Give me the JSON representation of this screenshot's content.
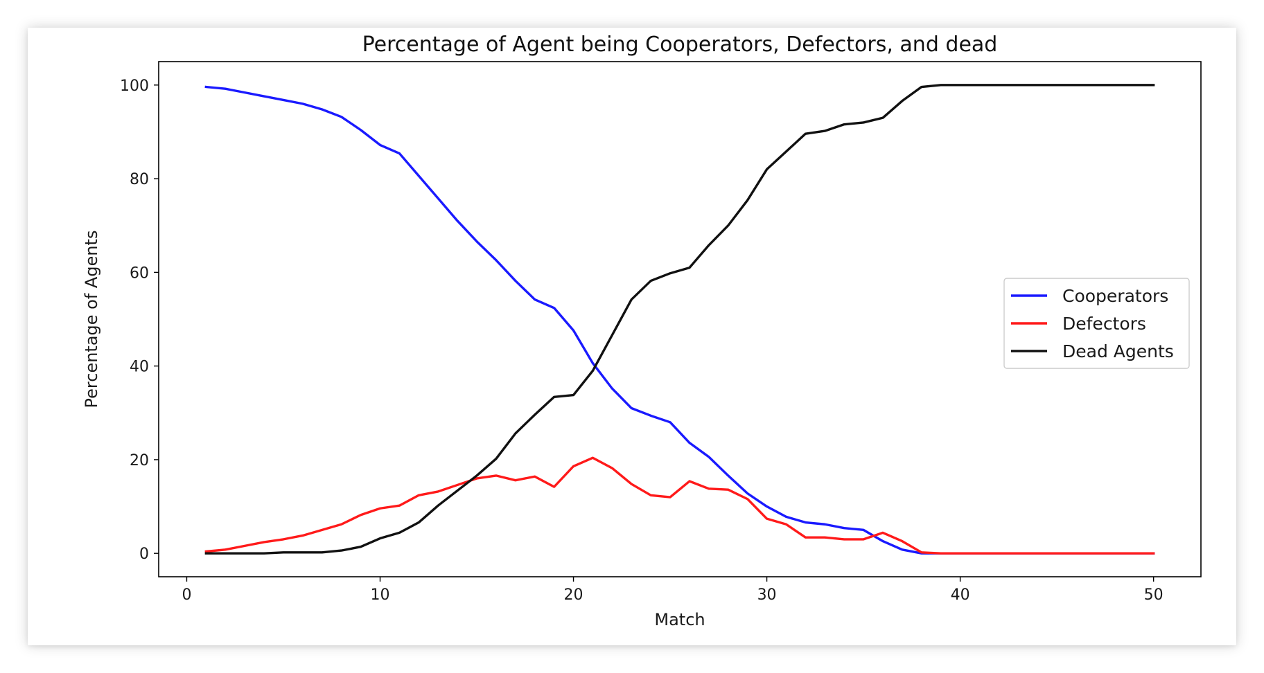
{
  "chart_data": {
    "type": "line",
    "title": "Percentage of Agent being Cooperators, Defectors, and dead",
    "xlabel": "Match",
    "ylabel": "Percentage of Agents",
    "xlim": [
      -1.45,
      52.45
    ],
    "ylim": [
      -5,
      105
    ],
    "xticks": [
      0,
      10,
      20,
      30,
      40,
      50
    ],
    "yticks": [
      0,
      20,
      40,
      60,
      80,
      100
    ],
    "grid": false,
    "legend_position": "center-right",
    "x": [
      1,
      2,
      3,
      4,
      5,
      6,
      7,
      8,
      9,
      10,
      11,
      12,
      13,
      14,
      15,
      16,
      17,
      18,
      19,
      20,
      21,
      22,
      23,
      24,
      25,
      26,
      27,
      28,
      29,
      30,
      31,
      32,
      33,
      34,
      35,
      36,
      37,
      38,
      39,
      40,
      41,
      42,
      43,
      44,
      45,
      46,
      47,
      48,
      49,
      50
    ],
    "series": [
      {
        "name": "Cooperators",
        "color": "#1a1aff",
        "values": [
          99.6,
          99.2,
          98.4,
          97.6,
          96.8,
          96.0,
          94.8,
          93.2,
          90.4,
          87.2,
          85.4,
          80.6,
          75.8,
          71.0,
          66.6,
          62.6,
          58.2,
          54.2,
          52.4,
          47.6,
          40.6,
          35.2,
          31.0,
          29.4,
          28.0,
          23.6,
          20.6,
          16.6,
          12.8,
          10.0,
          7.8,
          6.6,
          6.2,
          5.4,
          5.0,
          2.6,
          0.8,
          0.0,
          0.0,
          0.0,
          0.0,
          0.0,
          0.0,
          0.0,
          0.0,
          0.0,
          0.0,
          0.0,
          0.0,
          0.0
        ]
      },
      {
        "name": "Defectors",
        "color": "#ff1a1a",
        "values": [
          0.4,
          0.8,
          1.6,
          2.4,
          3.0,
          3.8,
          5.0,
          6.2,
          8.2,
          9.6,
          10.2,
          12.4,
          13.2,
          14.6,
          16.0,
          16.6,
          15.6,
          16.4,
          14.2,
          18.6,
          20.4,
          18.2,
          14.8,
          12.4,
          12.0,
          15.4,
          13.8,
          13.6,
          11.6,
          7.4,
          6.2,
          3.4,
          3.4,
          3.0,
          3.0,
          4.4,
          2.6,
          0.2,
          0.0,
          0.0,
          0.0,
          0.0,
          0.0,
          0.0,
          0.0,
          0.0,
          0.0,
          0.0,
          0.0,
          0.0
        ]
      },
      {
        "name": "Dead Agents",
        "color": "#111111",
        "values": [
          0.0,
          0.0,
          0.0,
          0.0,
          0.2,
          0.2,
          0.2,
          0.6,
          1.4,
          3.2,
          4.4,
          6.6,
          10.2,
          13.4,
          16.6,
          20.2,
          25.6,
          29.6,
          33.4,
          33.8,
          39.0,
          46.6,
          54.2,
          58.2,
          59.8,
          61.0,
          65.8,
          70.0,
          75.4,
          82.0,
          85.8,
          89.6,
          90.2,
          91.6,
          92.0,
          93.0,
          96.6,
          99.6,
          100.0,
          100.0,
          100.0,
          100.0,
          100.0,
          100.0,
          100.0,
          100.0,
          100.0,
          100.0,
          100.0,
          100.0
        ]
      }
    ]
  }
}
